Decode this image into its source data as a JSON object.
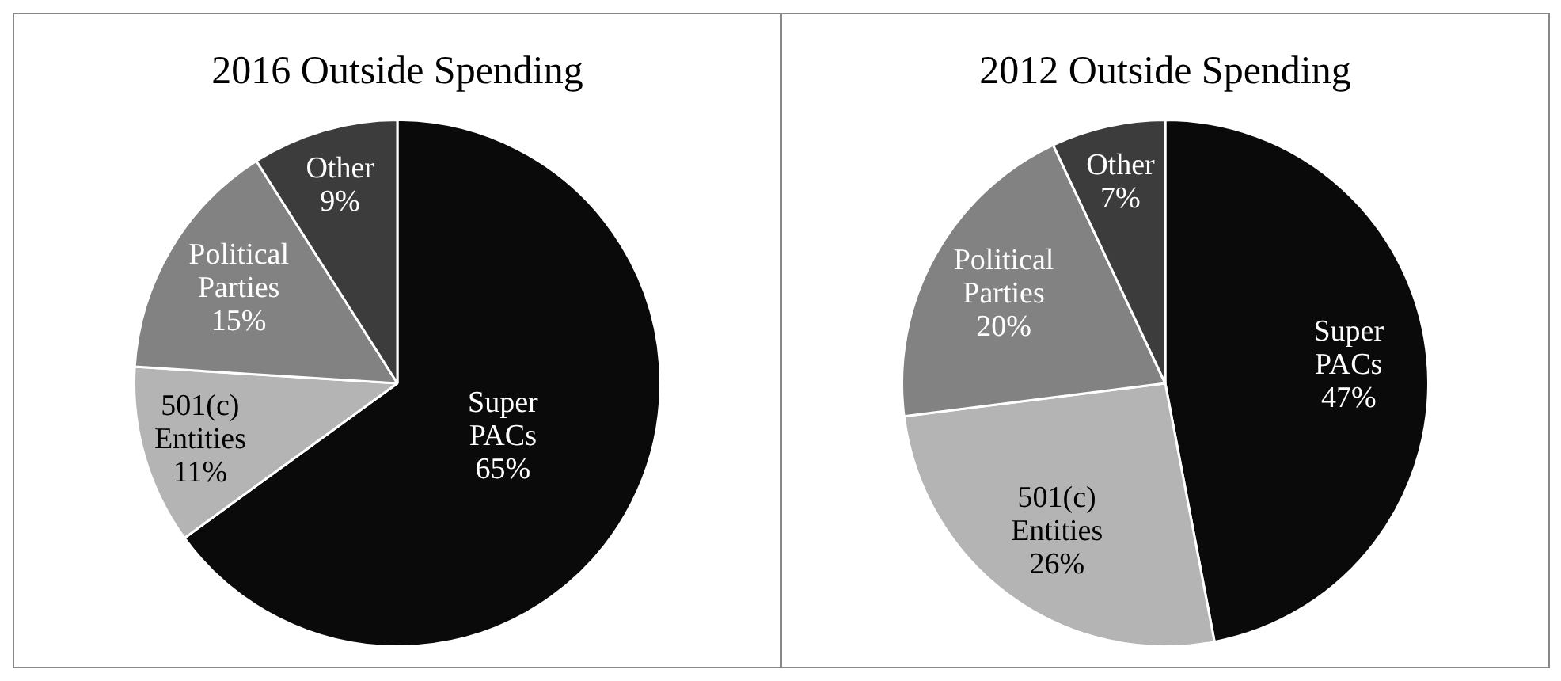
{
  "chart_data": [
    {
      "type": "pie",
      "title": "2016 Outside Spending",
      "categories": [
        "Super PACs",
        "501(c) Entities",
        "Political Parties",
        "Other"
      ],
      "values": [
        65,
        11,
        15,
        9
      ],
      "colors": [
        "#0a0a0a",
        "#b4b4b4",
        "#828282",
        "#3c3c3c"
      ],
      "value_labels": [
        "65%",
        "11%",
        "15%",
        "9%"
      ],
      "legend": false
    },
    {
      "type": "pie",
      "title": "2012 Outside Spending",
      "categories": [
        "Super PACs",
        "501(c) Entities",
        "Political Parties",
        "Other"
      ],
      "values": [
        47,
        26,
        20,
        7
      ],
      "colors": [
        "#0a0a0a",
        "#b4b4b4",
        "#828282",
        "#3c3c3c"
      ],
      "value_labels": [
        "47%",
        "26%",
        "20%",
        "7%"
      ],
      "legend": false
    }
  ]
}
